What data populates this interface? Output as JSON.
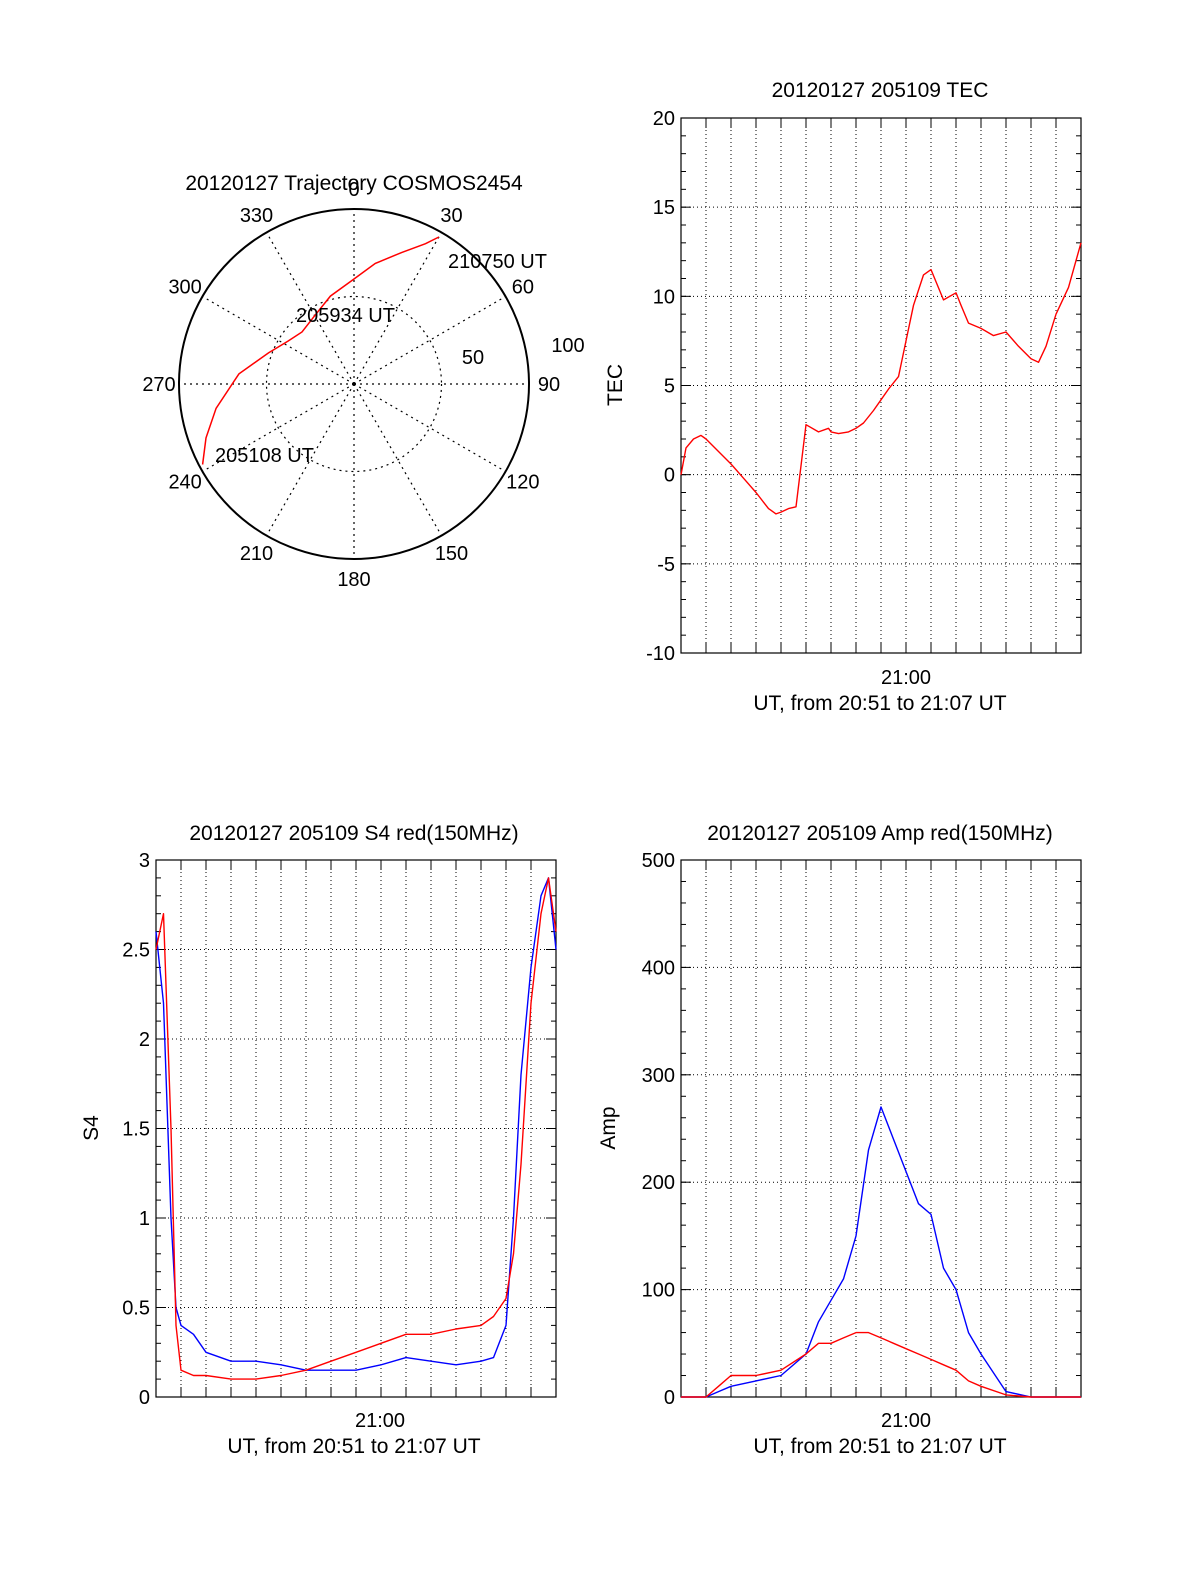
{
  "colors": {
    "red": "#ff0000",
    "blue": "#0000ff",
    "axis": "#000000",
    "grid": "#000000"
  },
  "chart_data": [
    {
      "type": "polar",
      "title": "20120127 Trajectory COSMOS2454",
      "angle_labels": [
        "0",
        "30",
        "60",
        "90",
        "120",
        "150",
        "180",
        "210",
        "240",
        "270",
        "300",
        "330"
      ],
      "radius_labels": [
        "50",
        "100"
      ],
      "rlim": [
        0,
        100
      ],
      "grid": true,
      "series": [
        {
          "color": "red",
          "points": [
            [
              242,
              98
            ],
            [
              250,
              90
            ],
            [
              260,
              80
            ],
            [
              275,
              66
            ],
            [
              290,
              52
            ],
            [
              303,
              45
            ],
            [
              315,
              42
            ],
            [
              330,
              45
            ],
            [
              345,
              52
            ],
            [
              360,
              60
            ],
            [
              10,
              70
            ],
            [
              20,
              80
            ],
            [
              27,
              90
            ],
            [
              30,
              97
            ]
          ]
        }
      ],
      "annotations": [
        {
          "text": "205108 UT",
          "theta": 242,
          "r": 98
        },
        {
          "text": "205934 UT",
          "theta": 0,
          "r": 40
        },
        {
          "text": "210750 UT",
          "theta": 30,
          "r": 97
        }
      ]
    },
    {
      "type": "line",
      "title": "20120127 205109 TEC",
      "ylabel": "TEC",
      "xlabel": "UT, from 20:51 to 21:07 UT",
      "ylim": [
        -10,
        20
      ],
      "yticks": [
        "20",
        "15",
        "10",
        "5",
        "0",
        "-5",
        "-10"
      ],
      "xtick_label": "21:00",
      "grid": true,
      "series": [
        {
          "color": "red",
          "x": [
            0,
            0.2,
            0.5,
            0.8,
            1.0,
            1.5,
            2.0,
            2.5,
            3.0,
            3.5,
            3.6,
            3.8,
            4.0,
            4.3,
            4.6,
            5.0,
            5.5,
            5.9,
            6.0,
            6.3,
            6.7,
            7.0,
            7.3,
            7.7,
            8.0,
            8.3,
            8.7,
            9.0,
            9.3,
            9.7,
            10.0,
            10.5,
            11.0,
            11.2,
            11.5,
            12.0,
            12.5,
            13.0,
            13.5,
            14.0,
            14.3,
            14.6,
            15.0,
            15.5,
            16.0
          ],
          "y": [
            0,
            1.5,
            2.0,
            2.2,
            2.0,
            1.3,
            0.6,
            -0.2,
            -1.0,
            -1.9,
            -2.0,
            -2.2,
            -2.1,
            -1.9,
            -1.8,
            2.8,
            2.4,
            2.6,
            2.4,
            2.3,
            2.4,
            2.6,
            2.9,
            3.6,
            4.2,
            4.8,
            5.5,
            7.5,
            9.5,
            11.2,
            11.5,
            9.8,
            10.2,
            9.5,
            8.5,
            8.2,
            7.8,
            8.0,
            7.2,
            6.5,
            6.3,
            7.2,
            9.0,
            10.5,
            13.0
          ]
        }
      ]
    },
    {
      "type": "line",
      "title": "20120127 205109 S4 red(150MHz)",
      "ylabel": "S4",
      "xlabel": "UT, from 20:51 to 21:07 UT",
      "ylim": [
        0,
        3
      ],
      "yticks": [
        "3",
        "2.5",
        "2",
        "1.5",
        "1",
        "0.5",
        "0"
      ],
      "xtick_label": "21:00",
      "grid": true,
      "series": [
        {
          "color": "blue",
          "x": [
            0,
            0.3,
            0.6,
            0.8,
            1.0,
            1.5,
            2.0,
            3.0,
            4.0,
            5.0,
            6.0,
            7.0,
            8.0,
            9.0,
            10.0,
            11.0,
            12.0,
            13.0,
            13.5,
            14.0,
            14.3,
            14.6,
            15.0,
            15.4,
            15.7,
            16.0
          ],
          "y": [
            2.6,
            2.2,
            1.0,
            0.5,
            0.4,
            0.35,
            0.25,
            0.2,
            0.2,
            0.18,
            0.15,
            0.15,
            0.15,
            0.18,
            0.22,
            0.2,
            0.18,
            0.2,
            0.22,
            0.4,
            1.0,
            1.8,
            2.4,
            2.8,
            2.9,
            2.5
          ]
        },
        {
          "color": "red",
          "x": [
            0,
            0.3,
            0.6,
            0.8,
            1.0,
            1.5,
            2.0,
            3.0,
            4.0,
            5.0,
            6.0,
            7.0,
            8.0,
            9.0,
            10.0,
            11.0,
            12.0,
            13.0,
            13.5,
            14.0,
            14.3,
            14.6,
            15.0,
            15.4,
            15.7,
            16.0
          ],
          "y": [
            2.5,
            2.7,
            1.5,
            0.4,
            0.15,
            0.12,
            0.12,
            0.1,
            0.1,
            0.12,
            0.15,
            0.2,
            0.25,
            0.3,
            0.35,
            0.35,
            0.38,
            0.4,
            0.45,
            0.55,
            0.8,
            1.3,
            2.2,
            2.7,
            2.9,
            2.6
          ]
        }
      ]
    },
    {
      "type": "line",
      "title": "20120127 205109 Amp red(150MHz)",
      "ylabel": "Amp",
      "xlabel": "UT, from 20:51 to 21:07 UT",
      "ylim": [
        0,
        500
      ],
      "yticks": [
        "500",
        "400",
        "300",
        "200",
        "100",
        "0"
      ],
      "xtick_label": "21:00",
      "grid": true,
      "series": [
        {
          "color": "blue",
          "x": [
            0,
            1.0,
            1.5,
            2.0,
            3.0,
            4.0,
            5.0,
            5.5,
            6.0,
            6.5,
            7.0,
            7.5,
            8.0,
            8.5,
            9.0,
            9.5,
            10.0,
            10.5,
            11.0,
            11.5,
            12.0,
            13.0,
            14.0,
            15.0,
            16.0
          ],
          "y": [
            0,
            0,
            5,
            10,
            15,
            20,
            40,
            70,
            90,
            110,
            150,
            230,
            270,
            240,
            210,
            180,
            170,
            120,
            100,
            60,
            40,
            5,
            0,
            0,
            0
          ]
        },
        {
          "color": "red",
          "x": [
            0,
            1.0,
            1.5,
            2.0,
            3.0,
            4.0,
            5.0,
            5.5,
            6.0,
            6.5,
            7.0,
            7.5,
            8.0,
            8.5,
            9.0,
            9.5,
            10.0,
            10.5,
            11.0,
            11.5,
            12.0,
            13.0,
            14.0,
            15.0,
            16.0
          ],
          "y": [
            0,
            0,
            10,
            20,
            20,
            25,
            40,
            50,
            50,
            55,
            60,
            60,
            55,
            50,
            45,
            40,
            35,
            30,
            25,
            15,
            10,
            2,
            0,
            0,
            0
          ]
        }
      ]
    }
  ]
}
